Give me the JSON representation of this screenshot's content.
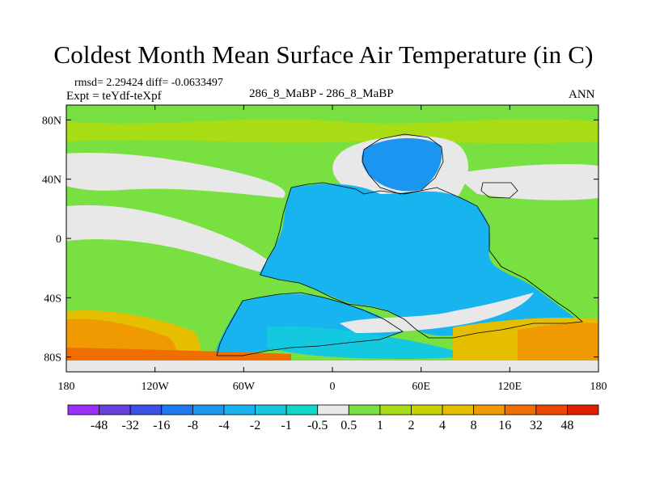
{
  "chart_data": {
    "type": "heatmap",
    "title": "Coldest Month Mean Surface Air Temperature (in C)",
    "stats_label": "rmsd= 2.29424 diff= -0.0633497",
    "experiment_label": "Expt = teYdf-teXpf",
    "center_label": "286_8_MaBP - 286_8_MaBP",
    "season_label": "ANN",
    "x_axis": {
      "range": [
        -180,
        180
      ],
      "ticks": [
        -180,
        -120,
        -60,
        0,
        60,
        120,
        180
      ],
      "tick_labels": [
        "180",
        "120W",
        "60W",
        "0",
        "60E",
        "120E",
        "180"
      ]
    },
    "y_axis": {
      "range": [
        -90,
        90
      ],
      "ticks": [
        80,
        40,
        0,
        -40,
        -80
      ],
      "tick_labels": [
        "80N",
        "40N",
        "0",
        "40S",
        "80S"
      ]
    },
    "colorbar": {
      "levels": [
        "-48",
        "-32",
        "-16",
        "-8",
        "-4",
        "-2",
        "-1",
        "-0.5",
        "0.5",
        "1",
        "2",
        "4",
        "8",
        "16",
        "32",
        "48"
      ],
      "colors": [
        "#9b30ff",
        "#6a3fe0",
        "#3c50e6",
        "#1e78f0",
        "#1a96f0",
        "#18b4f0",
        "#14c8e0",
        "#10d8c8",
        "#e8e8e8",
        "#78e040",
        "#a8dc14",
        "#c8d200",
        "#e6be00",
        "#ee9a00",
        "#f06e00",
        "#ec4600",
        "#e01e00"
      ]
    }
  },
  "colors": {
    "background": "#ffffff",
    "neutral": "#e8e8e8",
    "land_cold": "#18b4f0",
    "land_colder": "#1a96f0",
    "mild": "#14c8e0",
    "ocean_warm": "#78e040",
    "ocean_warmer": "#a8dc14",
    "southern_hot": "#e6be00",
    "southern_hotter": "#ee9a00",
    "southern_hottest": "#f06e00"
  }
}
